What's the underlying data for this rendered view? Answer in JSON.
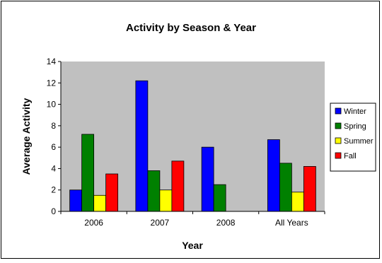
{
  "chart_data": {
    "type": "bar",
    "title": "Activity by Season & Year",
    "xlabel": "Year",
    "ylabel": "Average Activity",
    "categories": [
      "2006",
      "2007",
      "2008",
      "All Years"
    ],
    "series": [
      {
        "name": "Winter",
        "color": "#0000FF",
        "values": [
          2.0,
          12.2,
          6.0,
          6.7
        ]
      },
      {
        "name": "Spring",
        "color": "#008000",
        "values": [
          7.2,
          3.8,
          2.5,
          4.5
        ]
      },
      {
        "name": "Summer",
        "color": "#FFFF00",
        "values": [
          1.5,
          2.0,
          null,
          1.8
        ]
      },
      {
        "name": "Fall",
        "color": "#FF0000",
        "values": [
          3.5,
          4.7,
          null,
          4.2
        ]
      }
    ],
    "ylim": [
      0,
      14
    ],
    "yticks": [
      0,
      2,
      4,
      6,
      8,
      10,
      12,
      14
    ],
    "plot_background": "#C0C0C0",
    "legend_position": "right",
    "grid": false
  }
}
